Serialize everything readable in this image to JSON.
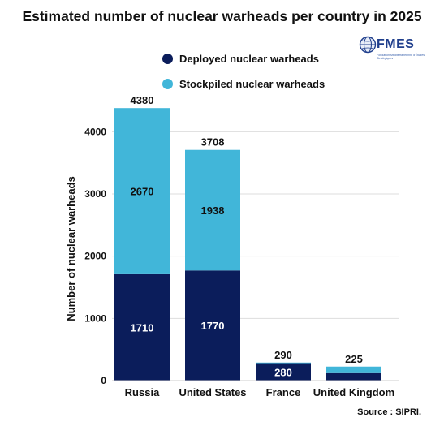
{
  "chart_data": {
    "type": "bar",
    "stacked": true,
    "title": "Estimated number of nuclear warheads per country in 2025",
    "xlabel": "",
    "ylabel": "Number of nuclear warheads",
    "ylim": [
      0,
      4500
    ],
    "yticks": [
      0,
      1000,
      2000,
      3000,
      4000
    ],
    "grid": true,
    "legend_position": "top",
    "categories": [
      "Russia",
      "United States",
      "France",
      "United Kingdom"
    ],
    "series": [
      {
        "name": "Deployed nuclear warheads",
        "color": "#0b1d5b",
        "values": [
          1710,
          1770,
          280,
          120
        ],
        "labels": [
          "1710",
          "1770",
          "280",
          ""
        ]
      },
      {
        "name": "Stockpiled nuclear warheads",
        "color": "#41b6d9",
        "values": [
          2670,
          1938,
          10,
          105
        ],
        "labels": [
          "2670",
          "1938",
          "",
          ""
        ]
      }
    ],
    "totals": [
      "4380",
      "3708",
      "290",
      "225"
    ],
    "source": "Source : SIPRI."
  },
  "logo": {
    "name": "FMES",
    "subtitle": "Fondation Méditerranéenne d'Études Stratégiques",
    "icon": "globe-icon"
  }
}
